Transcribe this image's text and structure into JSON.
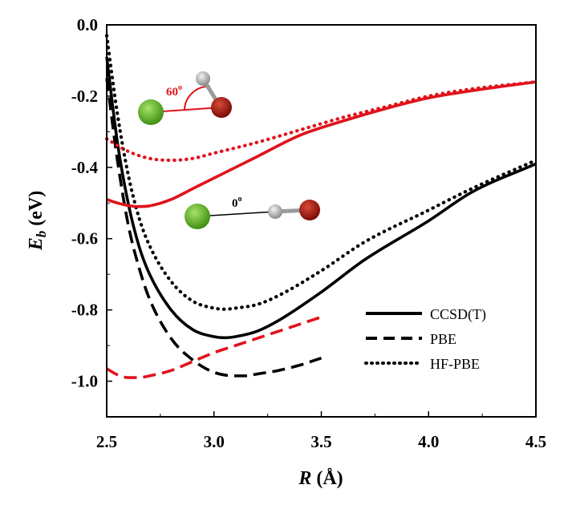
{
  "chart_data": {
    "type": "line",
    "xlabel": {
      "var": "R",
      "unit": " (Å)"
    },
    "ylabel": {
      "var": "E",
      "sub": "b",
      "unit": " (eV)"
    },
    "xlim": [
      2.5,
      4.5
    ],
    "ylim": [
      -1.1,
      0.0
    ],
    "xticks": [
      "2.5",
      "3.0",
      "3.5",
      "4.0",
      "4.5"
    ],
    "yticks": [
      "0.0",
      "-0.2",
      "-0.4",
      "-0.6",
      "-0.8",
      "-1.0"
    ],
    "legend": {
      "position": "bottom-right",
      "entries": [
        {
          "label": "CCSD(T)",
          "style": "solid"
        },
        {
          "label": "PBE",
          "style": "dashed"
        },
        {
          "label": "HF-PBE",
          "style": "dotted"
        }
      ]
    },
    "annotations": [
      {
        "text": "60",
        "superscript": "o",
        "color": "#e0121b"
      },
      {
        "text": "0",
        "superscript": "o",
        "color": "#000000"
      }
    ],
    "series": [
      {
        "geometry": "0",
        "method": "CCSD(T)",
        "style": "solid",
        "color": "#000000",
        "x": [
          2.5,
          2.55,
          2.6,
          2.65,
          2.7,
          2.8,
          2.9,
          3.0,
          3.05,
          3.1,
          3.2,
          3.3,
          3.5,
          3.7,
          4.0,
          4.2,
          4.5
        ],
        "y": [
          -0.09,
          -0.33,
          -0.5,
          -0.62,
          -0.7,
          -0.8,
          -0.855,
          -0.875,
          -0.878,
          -0.875,
          -0.86,
          -0.83,
          -0.75,
          -0.66,
          -0.55,
          -0.47,
          -0.39
        ]
      },
      {
        "geometry": "0",
        "method": "PBE",
        "style": "dashed",
        "color": "#000000",
        "x": [
          2.5,
          2.55,
          2.6,
          2.65,
          2.7,
          2.8,
          2.9,
          3.0,
          3.1,
          3.15,
          3.2,
          3.3,
          3.4,
          3.5
        ],
        "y": [
          -0.15,
          -0.38,
          -0.56,
          -0.68,
          -0.77,
          -0.88,
          -0.94,
          -0.975,
          -0.985,
          -0.985,
          -0.98,
          -0.97,
          -0.955,
          -0.935
        ]
      },
      {
        "geometry": "0",
        "method": "HF-PBE",
        "style": "dotted",
        "color": "#000000",
        "x": [
          2.5,
          2.55,
          2.6,
          2.65,
          2.7,
          2.8,
          2.9,
          3.0,
          3.05,
          3.1,
          3.2,
          3.3,
          3.5,
          3.7,
          4.0,
          4.2,
          4.5
        ],
        "y": [
          -0.03,
          -0.25,
          -0.42,
          -0.54,
          -0.62,
          -0.72,
          -0.775,
          -0.795,
          -0.798,
          -0.795,
          -0.785,
          -0.76,
          -0.69,
          -0.61,
          -0.52,
          -0.46,
          -0.38
        ]
      },
      {
        "geometry": "60",
        "method": "CCSD(T)",
        "style": "solid",
        "color": "#e0121b",
        "x": [
          2.5,
          2.55,
          2.6,
          2.65,
          2.7,
          2.8,
          2.9,
          3.0,
          3.2,
          3.4,
          3.6,
          3.8,
          4.0,
          4.2,
          4.5
        ],
        "y": [
          -0.49,
          -0.5,
          -0.507,
          -0.51,
          -0.508,
          -0.49,
          -0.46,
          -0.43,
          -0.37,
          -0.31,
          -0.27,
          -0.235,
          -0.205,
          -0.185,
          -0.16
        ]
      },
      {
        "geometry": "60",
        "method": "PBE",
        "style": "dashed",
        "color": "#e0121b",
        "x": [
          2.5,
          2.55,
          2.6,
          2.65,
          2.7,
          2.8,
          2.9,
          3.0,
          3.1,
          3.2,
          3.3,
          3.4,
          3.5
        ],
        "y": [
          -0.965,
          -0.982,
          -0.99,
          -0.99,
          -0.985,
          -0.97,
          -0.945,
          -0.92,
          -0.9,
          -0.88,
          -0.86,
          -0.84,
          -0.82
        ]
      },
      {
        "geometry": "60",
        "method": "HF-PBE",
        "style": "dotted",
        "color": "#e0121b",
        "x": [
          2.5,
          2.6,
          2.7,
          2.8,
          2.9,
          3.0,
          3.2,
          3.4,
          3.6,
          3.8,
          4.0,
          4.2,
          4.5
        ],
        "y": [
          -0.32,
          -0.355,
          -0.375,
          -0.38,
          -0.375,
          -0.36,
          -0.33,
          -0.295,
          -0.26,
          -0.23,
          -0.2,
          -0.18,
          -0.16
        ]
      }
    ]
  }
}
